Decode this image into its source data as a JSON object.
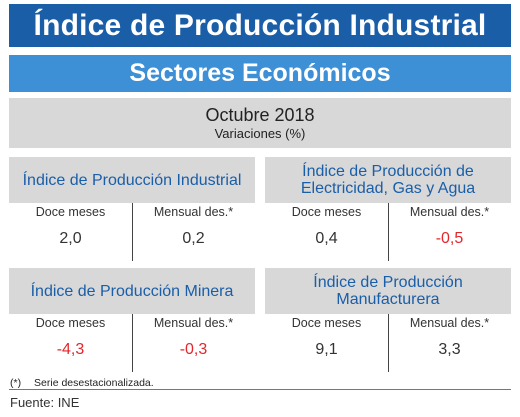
{
  "header": {
    "title": "Índice de Producción Industrial",
    "subtitle": "Sectores Económicos"
  },
  "period": {
    "month": "Octubre 2018",
    "units": "Variaciones (%)"
  },
  "cards": [
    {
      "title": "Índice de Producción Industrial",
      "left_label": "Doce meses",
      "left_value": "2,0",
      "right_label": "Mensual des.*",
      "right_value": "0,2"
    },
    {
      "title": "Índice de Producción de Electricidad, Gas y Agua",
      "left_label": "Doce meses",
      "left_value": "0,4",
      "right_label": "Mensual des.*",
      "right_value": "-0,5"
    },
    {
      "title": "Índice de Producción Minera",
      "left_label": "Doce meses",
      "left_value": "-4,3",
      "right_label": "Mensual des.*",
      "right_value": "-0,3"
    },
    {
      "title": "Índice de Producción Manufacturera",
      "left_label": "Doce meses",
      "left_value": "9,1",
      "right_label": "Mensual des.*",
      "right_value": "3,3"
    }
  ],
  "footnote": {
    "mark": "(*)",
    "text": "Serie desestacionalizada."
  },
  "source": "Fuente: INE",
  "colors": {
    "title_bar": "#1a5ea8",
    "subtitle_bar": "#3d8fd6",
    "panel": "#d8d8d8",
    "card_title": "#1a5ea8",
    "negative": "#e3262b"
  }
}
